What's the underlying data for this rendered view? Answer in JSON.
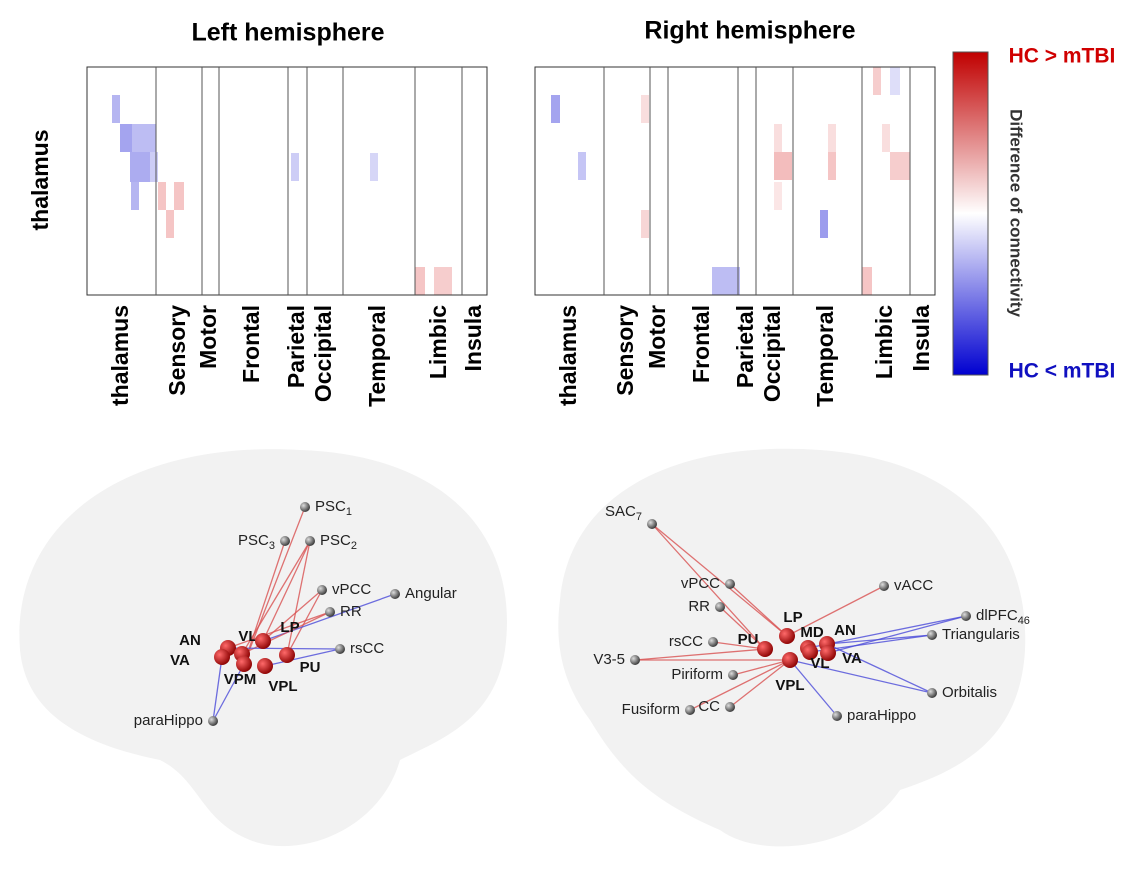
{
  "left": {
    "title": "Left hemisphere",
    "y_label": "thalamus",
    "x_labels": [
      "thalamus",
      "Sensory",
      "Motor",
      "Frontal",
      "Parietal",
      "Occipital",
      "Temporal",
      "Limbic",
      "Insula"
    ]
  },
  "right": {
    "title": "Right hemisphere",
    "x_labels": [
      "thalamus",
      "Sensory",
      "Motor",
      "Frontal",
      "Parietal",
      "Occipital",
      "Temporal",
      "Limbic",
      "Insula"
    ]
  },
  "colorbar": {
    "top": "HC > mTBI",
    "bottom": "HC < mTBI",
    "label": "Difference of connectivity"
  },
  "left_brain": {
    "regions": [
      {
        "label": "PSC",
        "sub": "1"
      },
      {
        "label": "PSC",
        "sub": "3"
      },
      {
        "label": "PSC",
        "sub": "2"
      },
      {
        "label": "vPCC"
      },
      {
        "label": "Angular"
      },
      {
        "label": "RR"
      },
      {
        "label": "rsCC"
      },
      {
        "label": "paraHippo"
      }
    ],
    "nuclei": [
      "AN",
      "VL",
      "LP",
      "VA",
      "VPM",
      "VPL",
      "PU"
    ]
  },
  "right_brain": {
    "regions": [
      {
        "label": "SAC",
        "sub": "7"
      },
      {
        "label": "vPCC"
      },
      {
        "label": "RR"
      },
      {
        "label": "rsCC"
      },
      {
        "label": "V3-5"
      },
      {
        "label": "Piriform"
      },
      {
        "label": "Fusiform"
      },
      {
        "label": "CC"
      },
      {
        "label": "paraHippo"
      },
      {
        "label": "Orbitalis"
      },
      {
        "label": "Triangularis"
      },
      {
        "label": "dlPFC",
        "sub": "46"
      },
      {
        "label": "vACC"
      }
    ],
    "nuclei": [
      "LP",
      "MD",
      "AN",
      "PU",
      "VL",
      "VA",
      "VPL"
    ]
  }
}
